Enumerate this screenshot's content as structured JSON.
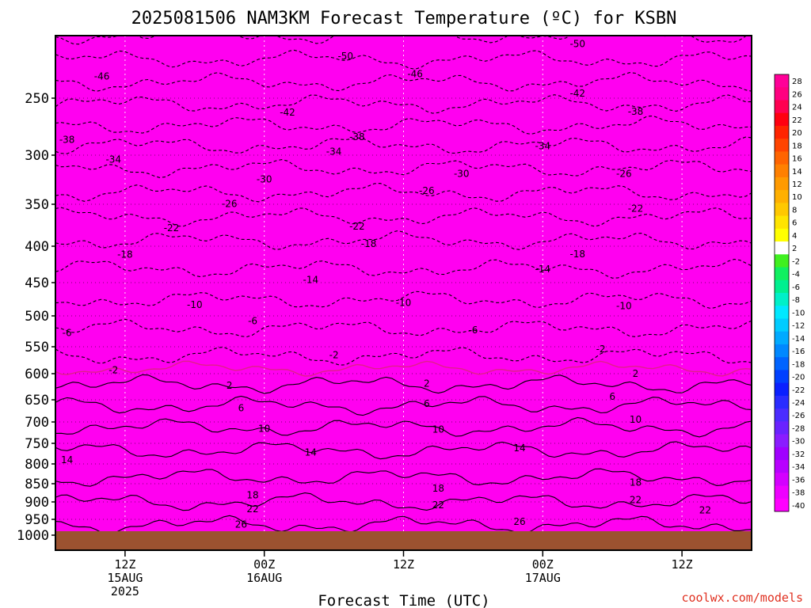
{
  "chart_data": {
    "type": "heatmap",
    "title": "2025081506 NAM3KM Forecast Temperature (ºC) for KSBN",
    "xlabel": "Forecast Time (UTC)",
    "credit": "coolwx.com/models",
    "y_ticks": [
      250,
      300,
      350,
      400,
      450,
      500,
      550,
      600,
      650,
      700,
      750,
      800,
      850,
      900,
      950,
      1000
    ],
    "y_range_hPa": [
      200,
      1000
    ],
    "x_ticks": [
      {
        "hour": 6,
        "l1": "12Z",
        "l2": "15AUG",
        "l3": "2025"
      },
      {
        "hour": 18,
        "l1": "00Z",
        "l2": "16AUG",
        "l3": ""
      },
      {
        "hour": 30,
        "l1": "12Z",
        "l2": "",
        "l3": ""
      },
      {
        "hour": 42,
        "l1": "00Z",
        "l2": "17AUG",
        "l3": ""
      },
      {
        "hour": 54,
        "l1": "12Z",
        "l2": "",
        "l3": ""
      }
    ],
    "x_range_hours": [
      0,
      60
    ],
    "colorbar_levels": [
      28,
      26,
      24,
      22,
      20,
      18,
      16,
      14,
      12,
      10,
      8,
      6,
      4,
      2,
      -2,
      -4,
      -6,
      -8,
      -10,
      -12,
      -14,
      -16,
      -18,
      -20,
      -22,
      -24,
      -26,
      -28,
      -30,
      -32,
      -34,
      -36,
      -38,
      -40
    ],
    "temperature_profile": [
      {
        "p": 200,
        "t": -55
      },
      {
        "p": 250,
        "t": -43
      },
      {
        "p": 300,
        "t": -32
      },
      {
        "p": 350,
        "t": -24
      },
      {
        "p": 400,
        "t": -17
      },
      {
        "p": 450,
        "t": -12
      },
      {
        "p": 500,
        "t": -8
      },
      {
        "p": 550,
        "t": -3
      },
      {
        "p": 600,
        "t": 0
      },
      {
        "p": 650,
        "t": 5
      },
      {
        "p": 700,
        "t": 9
      },
      {
        "p": 750,
        "t": 13
      },
      {
        "p": 800,
        "t": 16
      },
      {
        "p": 850,
        "t": 19
      },
      {
        "p": 900,
        "t": 22
      },
      {
        "p": 950,
        "t": 25
      },
      {
        "p": 1000,
        "t": 28
      }
    ],
    "contour_labels": [
      {
        "text": "-46",
        "x": 4,
        "p": 232
      },
      {
        "text": "-50",
        "x": 25,
        "p": 218
      },
      {
        "text": "-46",
        "x": 31,
        "p": 232
      },
      {
        "text": "-50",
        "x": 45,
        "p": 210
      },
      {
        "text": "-42",
        "x": 45,
        "p": 246
      },
      {
        "text": "-42",
        "x": 20,
        "p": 262
      },
      {
        "text": "-38",
        "x": 1,
        "p": 284
      },
      {
        "text": "-38",
        "x": 26,
        "p": 284
      },
      {
        "text": "-38",
        "x": 50,
        "p": 262
      },
      {
        "text": "-34",
        "x": 5,
        "p": 304
      },
      {
        "text": "-34",
        "x": 24,
        "p": 295
      },
      {
        "text": "-34",
        "x": 42,
        "p": 290
      },
      {
        "text": "-30",
        "x": 18,
        "p": 324
      },
      {
        "text": "-30",
        "x": 35,
        "p": 319
      },
      {
        "text": "-26",
        "x": 15,
        "p": 350
      },
      {
        "text": "-26",
        "x": 32,
        "p": 338
      },
      {
        "text": "-26",
        "x": 49,
        "p": 319
      },
      {
        "text": "-22",
        "x": 10,
        "p": 377
      },
      {
        "text": "-22",
        "x": 26,
        "p": 377
      },
      {
        "text": "-22",
        "x": 50,
        "p": 356
      },
      {
        "text": "-18",
        "x": 6,
        "p": 410
      },
      {
        "text": "-18",
        "x": 27,
        "p": 398
      },
      {
        "text": "-18",
        "x": 45,
        "p": 410
      },
      {
        "text": "-14",
        "x": 22,
        "p": 442
      },
      {
        "text": "-14",
        "x": 42,
        "p": 429
      },
      {
        "text": "-10",
        "x": 12,
        "p": 486
      },
      {
        "text": "-10",
        "x": 30,
        "p": 480
      },
      {
        "text": "-10",
        "x": 49,
        "p": 486
      },
      {
        "text": "-6",
        "x": 1,
        "p": 524
      },
      {
        "text": "-6",
        "x": 17,
        "p": 509
      },
      {
        "text": "-6",
        "x": 36,
        "p": 521
      },
      {
        "text": "-2",
        "x": 24,
        "p": 562
      },
      {
        "text": "-2",
        "x": 47,
        "p": 559
      },
      {
        "text": "-2",
        "x": 5,
        "p": 593
      },
      {
        "text": "2",
        "x": 15,
        "p": 623
      },
      {
        "text": "2",
        "x": 32,
        "p": 623
      },
      {
        "text": "2",
        "x": 50,
        "p": 602
      },
      {
        "text": "6",
        "x": 16,
        "p": 667
      },
      {
        "text": "6",
        "x": 32,
        "p": 664
      },
      {
        "text": "6",
        "x": 48,
        "p": 647
      },
      {
        "text": "10",
        "x": 18,
        "p": 716
      },
      {
        "text": "10",
        "x": 33,
        "p": 722
      },
      {
        "text": "10",
        "x": 50,
        "p": 697
      },
      {
        "text": "14",
        "x": 22,
        "p": 765
      },
      {
        "text": "14",
        "x": 40,
        "p": 759
      },
      {
        "text": "14",
        "x": 1,
        "p": 786
      },
      {
        "text": "18",
        "x": 17,
        "p": 883
      },
      {
        "text": "18",
        "x": 33,
        "p": 868
      },
      {
        "text": "18",
        "x": 50,
        "p": 850
      },
      {
        "text": "22",
        "x": 17,
        "p": 922
      },
      {
        "text": "22",
        "x": 33,
        "p": 915
      },
      {
        "text": "22",
        "x": 50,
        "p": 898
      },
      {
        "text": "22",
        "x": 56,
        "p": 922
      },
      {
        "text": "26",
        "x": 16,
        "p": 964
      },
      {
        "text": "26",
        "x": 40,
        "p": 955
      }
    ],
    "freezing_line_hPa": 590,
    "grid": true
  }
}
